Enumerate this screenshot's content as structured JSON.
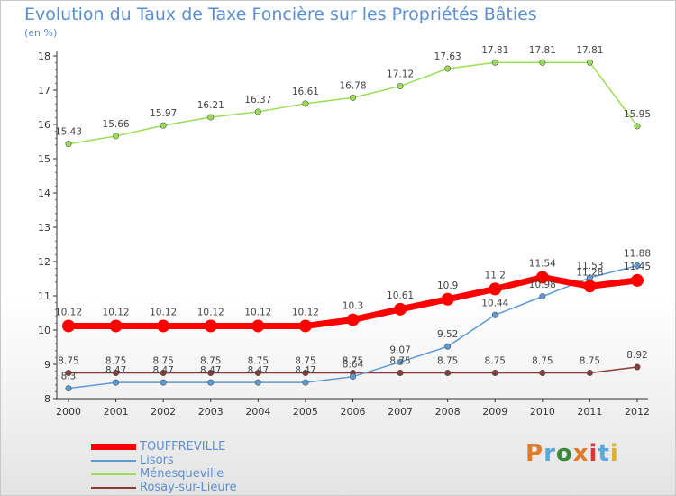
{
  "title": "Evolution du Taux de Taxe Foncière sur les Propriétés Bâties",
  "unit_label": "(en %)",
  "logo": {
    "text": "Proxiti",
    "colors": [
      "#e07b2a",
      "#5aa9d8",
      "#3b8a3b",
      "#e07b2a",
      "#d43a3a",
      "#5aa9d8",
      "#e0b020"
    ]
  },
  "chart_data": {
    "type": "line",
    "x": [
      "2000",
      "2001",
      "2002",
      "2003",
      "2004",
      "2005",
      "2006",
      "2007",
      "2008",
      "2009",
      "2010",
      "2011",
      "2012"
    ],
    "ylim": [
      8,
      18
    ],
    "yticks": [
      "8",
      "9",
      "10",
      "11",
      "12",
      "13",
      "14",
      "15",
      "16",
      "17",
      "18"
    ],
    "grid": false,
    "legend_position": "bottom-left",
    "series": [
      {
        "name": "TOUFFREVILLE",
        "color": "#ff0000",
        "values": [
          10.12,
          10.12,
          10.12,
          10.12,
          10.12,
          10.12,
          10.3,
          10.61,
          10.9,
          11.2,
          11.54,
          11.28,
          11.45
        ],
        "labels": [
          "10.12",
          "10.12",
          "10.12",
          "10.12",
          "10.12",
          "10.12",
          "10.3",
          "10.61",
          "10.9",
          "11.2",
          "11.54",
          "11.28",
          "11.45"
        ]
      },
      {
        "name": "Lisors",
        "color": "#5b9bd5",
        "values": [
          8.3,
          8.47,
          8.47,
          8.47,
          8.47,
          8.47,
          8.64,
          9.07,
          9.52,
          10.44,
          10.98,
          11.53,
          11.88
        ],
        "labels": [
          "8.3",
          "8.47",
          "8.47",
          "8.47",
          "8.47",
          "8.47",
          "8.64",
          "9.07",
          "9.52",
          "10.44",
          "10.98",
          "11.53",
          "11.88"
        ]
      },
      {
        "name": "Ménesqueville",
        "color": "#99dd55",
        "values": [
          15.43,
          15.66,
          15.97,
          16.21,
          16.37,
          16.61,
          16.78,
          17.12,
          17.63,
          17.81,
          17.81,
          17.81,
          15.95
        ],
        "labels": [
          "15.43",
          "15.66",
          "15.97",
          "16.21",
          "16.37",
          "16.61",
          "16.78",
          "17.12",
          "17.63",
          "17.81",
          "17.81",
          "17.81",
          "15.95"
        ]
      },
      {
        "name": "Rosay-sur-Lieure",
        "color": "#8b3a3a",
        "values": [
          8.75,
          8.75,
          8.75,
          8.75,
          8.75,
          8.75,
          8.75,
          8.75,
          8.75,
          8.75,
          8.75,
          8.75,
          8.92
        ],
        "labels": [
          "8.75",
          "8.75",
          "8.75",
          "8.75",
          "8.75",
          "8.75",
          "8.75",
          "8.75",
          "8.75",
          "8.75",
          "8.75",
          "8.75",
          "8.92"
        ]
      }
    ]
  }
}
